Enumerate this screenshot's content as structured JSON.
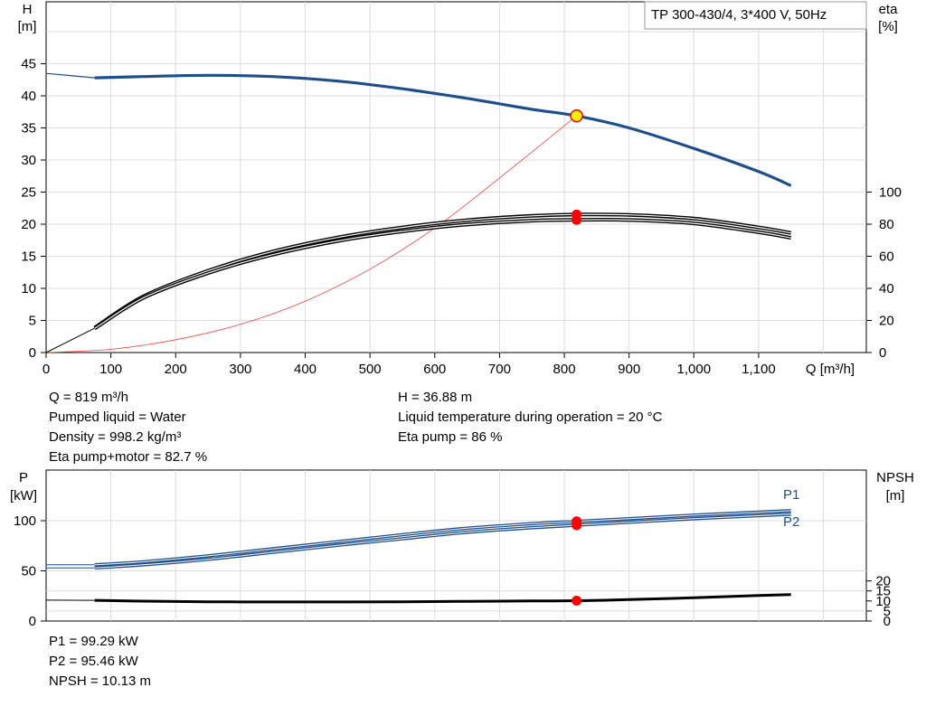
{
  "chart_data": [
    {
      "type": "line",
      "title": "TP 300-430/4, 3*400 V, 50Hz",
      "x_axis": {
        "label": "Q [m³/h]",
        "range": [
          0,
          1250
        ],
        "ticks": [
          "0",
          "100",
          "200",
          "300",
          "400",
          "500",
          "600",
          "700",
          "800",
          "900",
          "1,000",
          "1,100"
        ]
      },
      "y_axis_left": {
        "label_top": "H",
        "label_unit": "[m]",
        "range": [
          0,
          50
        ],
        "ticks": [
          "0",
          "5",
          "10",
          "15",
          "20",
          "25",
          "30",
          "35",
          "40",
          "45"
        ]
      },
      "y_axis_right": {
        "label_top": "eta",
        "label_unit": "[%]",
        "range": [
          0,
          100
        ],
        "ticks": [
          "0",
          "20",
          "40",
          "60",
          "80",
          "100"
        ]
      },
      "grid": true,
      "series": [
        {
          "key": "H",
          "color": "#1f4e8c",
          "axis": "left",
          "x": [
            0,
            75,
            150,
            250,
            350,
            450,
            550,
            650,
            750,
            819,
            900,
            1000,
            1100,
            1150
          ],
          "y": [
            43.5,
            42.8,
            43.0,
            43.2,
            43.0,
            42.3,
            41.1,
            39.6,
            37.9,
            36.88,
            35.0,
            31.8,
            28.2,
            26.0
          ]
        },
        {
          "key": "system-curve",
          "color": "#ff4040",
          "axis": "left",
          "x": [
            0,
            100,
            200,
            300,
            400,
            500,
            600,
            700,
            819
          ],
          "y": [
            0,
            0.5,
            2.0,
            4.4,
            8.0,
            13.0,
            19.4,
            27.2,
            36.88
          ]
        },
        {
          "key": "eta-pump",
          "color": "#000000",
          "axis": "right",
          "x": [
            75,
            150,
            250,
            350,
            450,
            550,
            650,
            750,
            819,
            900,
            1000,
            1100,
            1150
          ],
          "y": [
            15.5,
            35,
            51,
            63,
            71.7,
            78,
            82.5,
            85.2,
            86,
            85.8,
            83.5,
            78,
            74.5
          ]
        },
        {
          "key": "eta-pump-motor",
          "color": "#000000",
          "axis": "right",
          "x": [
            75,
            150,
            250,
            350,
            450,
            550,
            650,
            750,
            819,
            900,
            1000,
            1100,
            1150
          ],
          "y": [
            15,
            34,
            49.5,
            61,
            69.5,
            75.5,
            79.8,
            82.2,
            82.7,
            82.6,
            80.5,
            75,
            71.5
          ]
        }
      ],
      "operating_point": {
        "x": 819,
        "H": 36.88,
        "eta_pump": 86,
        "eta_pump_motor": 82.7
      }
    },
    {
      "type": "line",
      "x_axis": {
        "range": [
          0,
          1250
        ]
      },
      "y_axis_left": {
        "label_top": "P",
        "label_unit": "[kW]",
        "range": [
          0,
          120
        ],
        "ticks": [
          "0",
          "50",
          "100"
        ]
      },
      "y_axis_right": {
        "label_top": "NPSH",
        "label_unit": "[m]",
        "range": [
          0,
          27.5
        ],
        "ticks": [
          "0",
          "5",
          "10",
          "15",
          "20"
        ]
      },
      "grid": true,
      "series": [
        {
          "name": "P1",
          "color": "#1f4e8c",
          "axis": "left",
          "x": [
            0,
            75,
            150,
            250,
            350,
            450,
            550,
            650,
            750,
            819,
            900,
            1000,
            1100,
            1150
          ],
          "y": [
            56,
            56,
            59,
            65,
            72,
            79,
            86,
            92.5,
            97,
            99.29,
            102,
            105.5,
            108.5,
            110
          ]
        },
        {
          "name": "P2",
          "color": "#1f4e8c",
          "axis": "left",
          "x": [
            0,
            75,
            150,
            250,
            350,
            450,
            550,
            650,
            750,
            819,
            900,
            1000,
            1100,
            1150
          ],
          "y": [
            53,
            53,
            56,
            61.5,
            68.5,
            75.5,
            82,
            88.5,
            93,
            95.46,
            98.5,
            102,
            105,
            106.5
          ]
        },
        {
          "key": "NPSH",
          "color": "#000000",
          "axis": "right",
          "x": [
            0,
            75,
            150,
            250,
            350,
            450,
            550,
            650,
            750,
            819,
            900,
            1000,
            1100,
            1150
          ],
          "y": [
            10.4,
            10.3,
            9.9,
            9.6,
            9.5,
            9.5,
            9.6,
            9.8,
            10.0,
            10.13,
            10.7,
            11.6,
            12.7,
            13.2
          ]
        }
      ],
      "operating_point": {
        "x": 819,
        "P1": 99.29,
        "P2": 95.46,
        "NPSH": 10.13
      }
    }
  ],
  "results": {
    "left": [
      "Q = 819 m³/h",
      "Pumped liquid = Water",
      "Density = 998.2 kg/m³",
      "Eta pump+motor = 82.7 %"
    ],
    "right": [
      "H = 36.88 m",
      "Liquid temperature during operation = 20 °C",
      "Eta pump = 86 %"
    ],
    "bottom": [
      "P1 = 99.29 kW",
      "P2 = 95.46 kW",
      "NPSH = 10.13 m"
    ]
  },
  "colors": {
    "blue_curve": "#1f4e8c",
    "system_curve": "#ff4040",
    "operating_point": "#ff0000",
    "duty_point_fill": "#ffee00",
    "grid": "#dcdcdc"
  }
}
